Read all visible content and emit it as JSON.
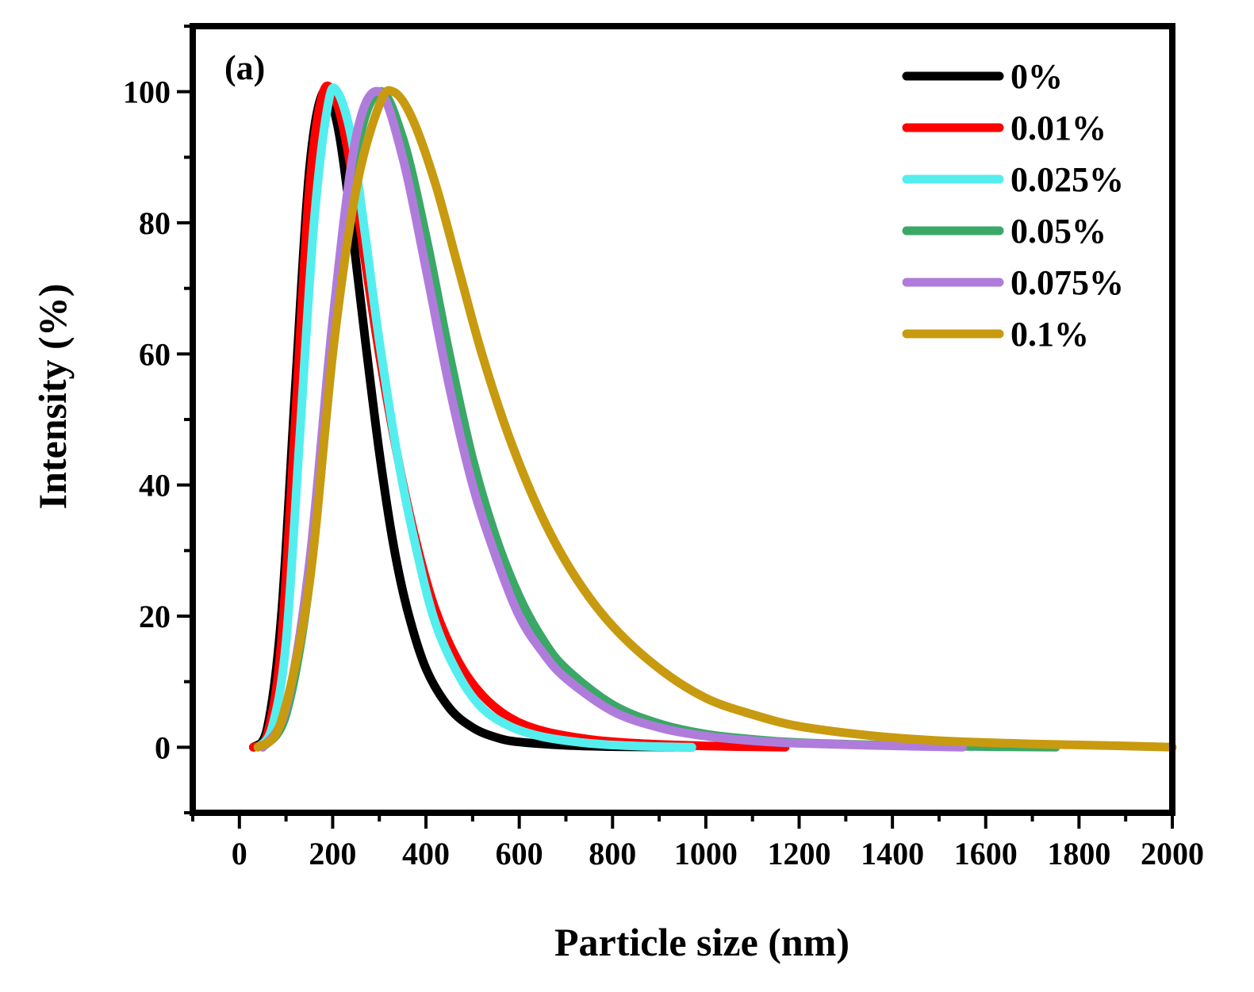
{
  "chart_data": {
    "type": "line",
    "panel_label": "(a)",
    "xlabel": "Particle size (nm)",
    "ylabel": "Intensity (%)",
    "xlim": [
      -100,
      2000
    ],
    "ylim": [
      -10,
      110
    ],
    "x_ticks": [
      0,
      200,
      400,
      600,
      800,
      1000,
      1200,
      1400,
      1600,
      1800,
      2000
    ],
    "y_ticks": [
      0,
      20,
      40,
      60,
      80,
      100
    ],
    "grid": false,
    "legend_position": "top-right",
    "series": [
      {
        "name": "0%",
        "color": "#000000",
        "x": [
          30,
          60,
          90,
          120,
          150,
          180,
          210,
          240,
          270,
          300,
          330,
          360,
          400,
          450,
          500,
          550,
          600,
          700,
          800,
          900,
          970
        ],
        "y": [
          0,
          3,
          20,
          55,
          88,
          100,
          95,
          80,
          62,
          45,
          31,
          21,
          12,
          6,
          3,
          1.5,
          0.8,
          0.3,
          0.1,
          0.05,
          0
        ]
      },
      {
        "name": "0.01%",
        "color": "#ff0000",
        "x": [
          30,
          60,
          90,
          120,
          150,
          180,
          210,
          240,
          270,
          300,
          340,
          380,
          420,
          470,
          520,
          580,
          650,
          750,
          850,
          1000,
          1170
        ],
        "y": [
          0,
          2,
          16,
          50,
          85,
          100,
          98,
          88,
          74,
          60,
          44,
          31,
          21,
          13,
          8,
          4.5,
          2.5,
          1.2,
          0.6,
          0.2,
          0
        ]
      },
      {
        "name": "0.025%",
        "color": "#55eeee",
        "x": [
          40,
          70,
          100,
          130,
          160,
          190,
          210,
          240,
          270,
          300,
          340,
          380,
          420,
          470,
          520,
          580,
          650,
          750,
          850,
          970
        ],
        "y": [
          0,
          3,
          16,
          48,
          80,
          98,
          100,
          93,
          78,
          62,
          44,
          30,
          19,
          11,
          6,
          3.2,
          1.6,
          0.6,
          0.2,
          0
        ]
      },
      {
        "name": "0.05%",
        "color": "#3aa866",
        "x": [
          50,
          100,
          150,
          200,
          250,
          300,
          350,
          400,
          450,
          500,
          550,
          600,
          650,
          700,
          800,
          900,
          1000,
          1100,
          1200,
          1400,
          1600,
          1750
        ],
        "y": [
          0,
          5,
          25,
          60,
          90,
          100,
          93,
          78,
          60,
          44,
          32,
          23,
          16.5,
          12,
          6.5,
          3.6,
          2,
          1.2,
          0.7,
          0.3,
          0.1,
          0
        ]
      },
      {
        "name": "0.075%",
        "color": "#b07cdc",
        "x": [
          50,
          100,
          150,
          200,
          250,
          300,
          350,
          400,
          450,
          500,
          550,
          600,
          650,
          700,
          800,
          900,
          1000,
          1100,
          1200,
          1350,
          1550
        ],
        "y": [
          0,
          6,
          28,
          65,
          93,
          100,
          90,
          73,
          55,
          40,
          29,
          20,
          14.5,
          10.5,
          5.5,
          3,
          1.7,
          1,
          0.6,
          0.3,
          0
        ]
      },
      {
        "name": "0.1%",
        "color": "#c89a10",
        "x": [
          40,
          90,
          150,
          200,
          250,
          300,
          330,
          370,
          420,
          470,
          520,
          580,
          650,
          720,
          800,
          900,
          1000,
          1100,
          1200,
          1350,
          1500,
          1700,
          1900,
          2000
        ],
        "y": [
          0,
          4,
          25,
          60,
          85,
          98,
          100,
          96,
          86,
          73,
          60,
          47,
          35,
          26,
          18.5,
          12,
          7.5,
          5,
          3.2,
          1.8,
          1,
          0.5,
          0.2,
          0
        ]
      }
    ]
  }
}
